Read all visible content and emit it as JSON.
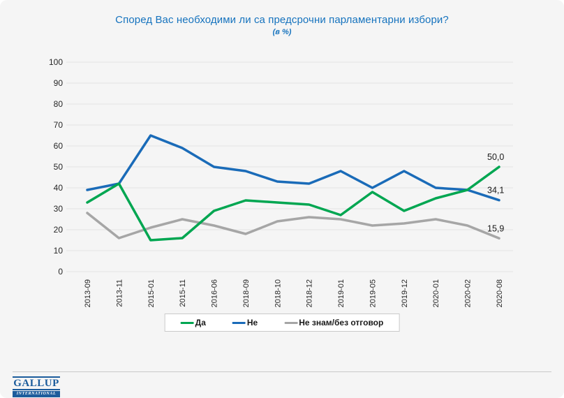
{
  "title": "Според Вас необходими ли са предсрочни парламентарни избори?",
  "subtitle": "(в %)",
  "colors": {
    "background": "#f5f5f5",
    "title_blue": "#1673be",
    "gridline": "#e2e2e2",
    "axis_text": "#262626",
    "green": "#00a651",
    "blue": "#1a6bb8",
    "gray": "#a6a6a6",
    "logo_blue": "#1c5c9c"
  },
  "chart_data": {
    "type": "line",
    "title": "Според Вас необходими ли са предсрочни парламентарни избори?",
    "subtitle": "(в %)",
    "categories": [
      "2013-09",
      "2013-11",
      "2015-01",
      "2015-11",
      "2016-06",
      "2018-09",
      "2018-10",
      "2018-12",
      "2019-01",
      "2019-05",
      "2019-12",
      "2020-01",
      "2020-02",
      "2020-08"
    ],
    "series": [
      {
        "name": "Да",
        "color": "#00a651",
        "values": [
          33,
          42,
          15,
          16,
          29,
          34,
          33,
          32,
          27,
          38,
          29,
          35,
          39,
          50.0
        ],
        "end_label": "50,0"
      },
      {
        "name": "Не",
        "color": "#1a6bb8",
        "values": [
          39,
          42,
          65,
          59,
          50,
          48,
          43,
          42,
          48,
          40,
          48,
          40,
          39,
          34.1
        ],
        "end_label": "34,1"
      },
      {
        "name": "Не знам/без отговор",
        "color": "#a6a6a6",
        "values": [
          28,
          16,
          21,
          25,
          22,
          18,
          24,
          26,
          25,
          22,
          23,
          25,
          22,
          15.9
        ],
        "end_label": "15,9"
      }
    ],
    "ylim": [
      0,
      100
    ],
    "yticks": [
      0,
      10,
      20,
      30,
      40,
      50,
      60,
      70,
      80,
      90,
      100
    ],
    "grid": true,
    "legend_position": "bottom",
    "xlabel": "",
    "ylabel": ""
  },
  "footer": {
    "logo_line1": "GALLUP",
    "logo_line2": "INTERNATIONAL"
  }
}
